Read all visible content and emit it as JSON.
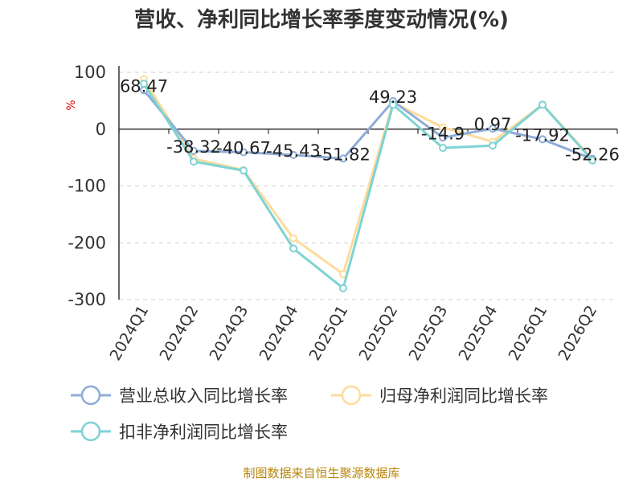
{
  "title": "营收、净利同比增长率季度变动情况(%)",
  "footer": "制图数据来自恒生聚源数据库",
  "chart_data": {
    "type": "line",
    "title": "营收、净利同比增长率季度变动情况(%)",
    "ylabel": "%",
    "xlabel": "",
    "ylim": [
      -300,
      100
    ],
    "yticks": [
      100,
      0,
      -100,
      -200,
      -300
    ],
    "grid": true,
    "legend_position": "bottom",
    "categories": [
      "2024Q1",
      "2024Q2",
      "2024Q3",
      "2024Q4",
      "2025Q1",
      "2025Q2",
      "2025Q3",
      "2025Q4",
      "2026Q1",
      "2026Q2"
    ],
    "series": [
      {
        "name": "营业总收入同比增长率",
        "color": "#8eacd8",
        "values": [
          68.47,
          -38.32,
          -40.67,
          -45.43,
          -51.82,
          49.23,
          -14.9,
          0.97,
          -17.92,
          -52.26
        ],
        "labels": [
          "68.47",
          "-38.32",
          "-40.67",
          "-45.43",
          "-51.82",
          "49.23",
          "-14.9",
          "0.97",
          "-17.92",
          "-52.26"
        ]
      },
      {
        "name": "归母净利润同比增长率",
        "color": "#fddc9c",
        "values": [
          88,
          -52,
          -72,
          -192,
          -255,
          47,
          3,
          -22,
          43,
          -52
        ]
      },
      {
        "name": "扣非净利润同比增长率",
        "color": "#7ed3d4",
        "values": [
          80,
          -57,
          -73,
          -210,
          -280,
          43,
          -33,
          -29,
          43,
          -55
        ]
      }
    ]
  }
}
